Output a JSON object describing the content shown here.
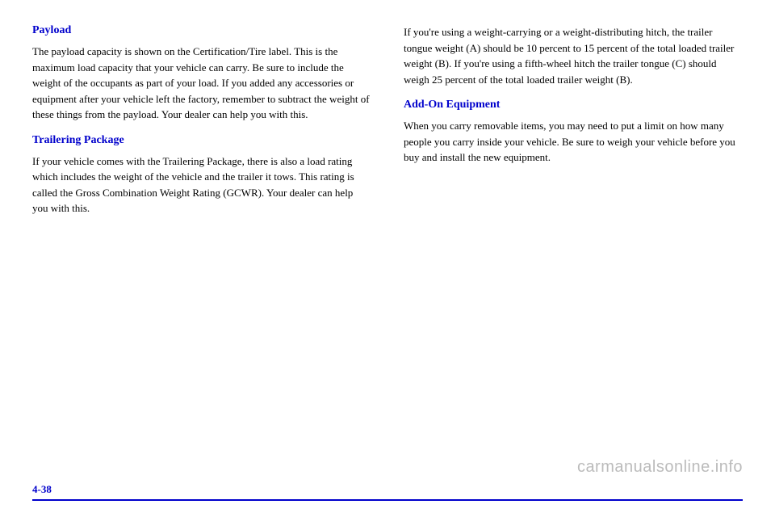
{
  "left": {
    "heading1": "Payload",
    "para1": "The payload capacity is shown on the Certification/Tire label. This is the maximum load capacity that your vehicle can carry. Be sure to include the weight of the occupants as part of your load. If you added any accessories or equipment after your vehicle left the factory, remember to subtract the weight of these things from the payload. Your dealer can help you with this.",
    "heading2": "Trailering Package",
    "para2": "If your vehicle comes with the Trailering Package, there is also a load rating which includes the weight of the vehicle and the trailer it tows. This rating is called the Gross Combination Weight Rating (GCWR). Your dealer can help you with this."
  },
  "right": {
    "para1": "If you're using a weight-carrying or a weight-distributing hitch, the trailer tongue weight (A) should be 10 percent to 15 percent of the total loaded trailer weight (B). If you're using a fifth-wheel hitch the trailer tongue (C) should weigh 25 percent of the total loaded trailer weight (B).",
    "heading1": "Add-On Equipment",
    "para2": "When you carry removable items, you may need to put a limit on how many people you carry inside your vehicle. Be sure to weigh your vehicle before you buy and install the new equipment."
  },
  "pageNumber": "4-38",
  "watermark": "carmanualsonline.info"
}
